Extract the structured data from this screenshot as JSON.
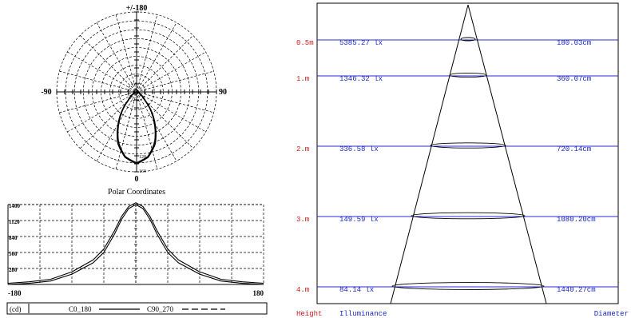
{
  "colors": {
    "ink": "#000000",
    "height_label": "#d01818",
    "value_label": "#1a28c8",
    "level_line": "#2a2ad0",
    "grid": "#000000"
  },
  "polar": {
    "label_top": "+/-180",
    "label_left": "-90",
    "label_right": "90",
    "label_bottom": "0",
    "caption": "Polar Coordinates",
    "ring_labels": [
      "120",
      "160"
    ],
    "max_cd": 180,
    "ring_count": 9
  },
  "linear": {
    "x_left": "-180",
    "x_right": "180",
    "y_ticks": [
      "1400",
      "1120",
      "840",
      "560",
      "280"
    ],
    "y_max": 1400,
    "unit_label": "(cd)",
    "legend_c0": "C0_180",
    "legend_c90": "C90_270"
  },
  "cone": {
    "header_height": "Height",
    "header_illuminance": "Illuminance",
    "header_diameter": "Diameter",
    "rows": [
      {
        "height": "0.5m",
        "illuminance": "5385.27 lx",
        "diameter": "180.03cm"
      },
      {
        "height": "1.m",
        "illuminance": "1346.32 lx",
        "diameter": "360.07cm"
      },
      {
        "height": "2.m",
        "illuminance": "336.58 lx",
        "diameter": "720.14cm"
      },
      {
        "height": "3.m",
        "illuminance": "149.59 lx",
        "diameter": "1080.20cm"
      },
      {
        "height": "4.m",
        "illuminance": "84.14 lx",
        "diameter": "1440.27cm"
      }
    ]
  },
  "chart_data": [
    {
      "type": "line",
      "title": "Polar Coordinates",
      "x": [
        -180,
        -150,
        -120,
        -90,
        -60,
        -45,
        -30,
        -20,
        -10,
        0,
        10,
        20,
        30,
        45,
        60,
        90,
        120,
        150,
        180
      ],
      "series": [
        {
          "name": "C0_180",
          "values": [
            0,
            0,
            0,
            0,
            8,
            25,
            80,
            120,
            148,
            160,
            148,
            120,
            80,
            25,
            8,
            0,
            0,
            0,
            0
          ]
        },
        {
          "name": "C90_270",
          "values": [
            0,
            0,
            0,
            0,
            10,
            28,
            84,
            124,
            150,
            162,
            150,
            124,
            84,
            28,
            10,
            0,
            0,
            0,
            0
          ]
        }
      ],
      "xlabel": "",
      "ylabel": "",
      "ylim": [
        0,
        180
      ]
    },
    {
      "type": "line",
      "x": [
        -180,
        -150,
        -120,
        -90,
        -60,
        -45,
        -30,
        -20,
        -10,
        0,
        10,
        20,
        30,
        45,
        60,
        90,
        120,
        150,
        180
      ],
      "series": [
        {
          "name": "C0_180",
          "values": [
            0,
            20,
            60,
            180,
            380,
            560,
            880,
            1140,
            1330,
            1400,
            1330,
            1140,
            880,
            560,
            380,
            180,
            60,
            20,
            0
          ]
        },
        {
          "name": "C90_270",
          "values": [
            0,
            25,
            70,
            200,
            410,
            600,
            920,
            1170,
            1345,
            1410,
            1345,
            1170,
            920,
            600,
            410,
            200,
            70,
            25,
            0
          ]
        }
      ],
      "categories": [],
      "xlabel": "",
      "ylabel": "(cd)",
      "ylim": [
        0,
        1400
      ]
    },
    {
      "type": "table",
      "columns": [
        "Height",
        "Illuminance",
        "Diameter"
      ],
      "rows": [
        [
          "0.5m",
          "5385.27 lx",
          "180.03cm"
        ],
        [
          "1.m",
          "1346.32 lx",
          "360.07cm"
        ],
        [
          "2.m",
          "336.58 lx",
          "720.14cm"
        ],
        [
          "3.m",
          "149.59 lx",
          "1080.20cm"
        ],
        [
          "4.m",
          "84.14 lx",
          "1440.27cm"
        ]
      ]
    }
  ]
}
